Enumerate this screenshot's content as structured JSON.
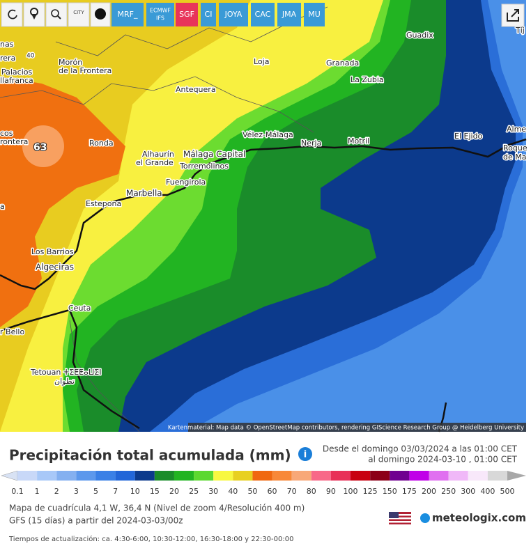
{
  "toolbar": {
    "city": "CITY",
    "buttons": [
      "MRF_",
      "ECMWF",
      "IFS",
      "SGF",
      "CI",
      "JOYA",
      "CAC",
      "JMA",
      "MU"
    ]
  },
  "map": {
    "places": [
      "nas",
      "rera",
      "40",
      "Morón",
      "de la Frontera",
      "Palacios",
      "llafranca",
      "Antequera",
      "Loja",
      "Granada",
      "La Zubia",
      "Guadix",
      "Tíj",
      "El Ejido",
      "Alme",
      "Roque",
      "de Ma",
      "Vélez-Málaga",
      "Nerja",
      "Motril",
      "Málaga Capital",
      "Torremolinos",
      "Alhaurín",
      "el Grande",
      "Fuengirola",
      "Ronda",
      "cos",
      "rontera",
      "Marbella",
      "Estepona",
      "a",
      "Los Barrios",
      "Algeciras",
      "Ceuta",
      "r Bello",
      "Tetouan ⵜⵉⵟⵟⴰⵡⵉⵏ",
      "تطوان"
    ],
    "value_label": "63",
    "attribution": "Kartenmaterial: Map data © OpenStreetMap contributors, rendering GIScience Research Group @ Heidelberg University"
  },
  "title": "Precipitación total acumulada (mm)",
  "period": [
    "Desde el domingo 03/03/2024 a  las 01:00 CET",
    "al domingo 2024-03-10 , 01:00 CET"
  ],
  "legend": {
    "labels": [
      "0.1",
      "1",
      "2",
      "3",
      "5",
      "7",
      "10",
      "15",
      "20",
      "25",
      "30",
      "40",
      "50",
      "60",
      "70",
      "80",
      "90",
      "100",
      "125",
      "150",
      "175",
      "200",
      "250",
      "300",
      "400",
      "500"
    ],
    "colors": [
      "#d8e2f4",
      "#c8d8f8",
      "#a8c8f8",
      "#84b0f0",
      "#5c98ec",
      "#3a80e6",
      "#2266d8",
      "#0c3a8c",
      "#1a8c2a",
      "#22b422",
      "#5cd830",
      "#f8f840",
      "#e8d020",
      "#f06810",
      "#f88838",
      "#f8a878",
      "#f86888",
      "#e83058",
      "#c80010",
      "#8c0018",
      "#700090",
      "#c000e8",
      "#e070f0",
      "#f0b8f8",
      "#f8e8fa",
      "#d8d8d8",
      "#a8a8a8"
    ]
  },
  "info": [
    "Mapa de cuadrícula 4,1 W, 36,4 N (Nivel de zoom 4/Resolución 400 m)",
    "GFS (15 días) a partir del 2024-03-03/00z"
  ],
  "brand": "meteologix.com",
  "update_times": "Tiempos de actualización: ca. 4:30-6:00, 10:30-12:00, 16:30-18:00 y 22:30-00:00"
}
